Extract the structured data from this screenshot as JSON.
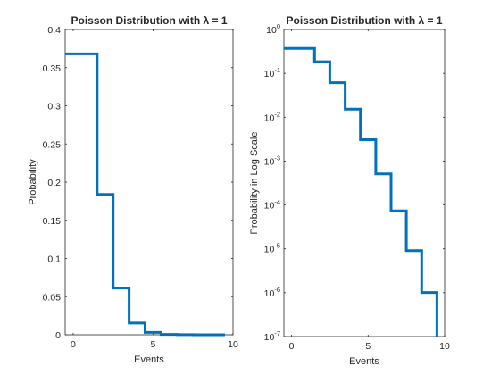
{
  "colors": {
    "series": "#0072BD",
    "axes": "#262626",
    "background": "#ffffff"
  },
  "chart_data": [
    {
      "type": "line",
      "style": "stairs",
      "title": "Poisson Distribution with λ = 1",
      "xlabel": "Events",
      "ylabel": "Probability",
      "yscale": "linear",
      "xlim": [
        -0.5,
        10
      ],
      "ylim": [
        0,
        0.4
      ],
      "xticks": [
        0,
        5,
        10
      ],
      "xtick_labels": [
        "0",
        "5",
        "10"
      ],
      "yticks": [
        0,
        0.05,
        0.1,
        0.15,
        0.2,
        0.25,
        0.3,
        0.35,
        0.4
      ],
      "ytick_labels": [
        "0",
        "0.05",
        "0.1",
        "0.15",
        "0.2",
        "0.25",
        "0.3",
        "0.35",
        "0.4"
      ],
      "grid": false,
      "series": [
        {
          "x": [
            0,
            1,
            2,
            3,
            4,
            5,
            6,
            7,
            8,
            9
          ],
          "values": [
            0.3679,
            0.3679,
            0.1839,
            0.0613,
            0.0153,
            0.00307,
            0.000511,
            7.3e-05,
            9.12e-06,
            1.01e-06
          ]
        }
      ]
    },
    {
      "type": "line",
      "style": "stairs",
      "title": "Poisson Distribution with λ = 1",
      "xlabel": "Events",
      "ylabel": "Probability in Log Scale",
      "yscale": "log",
      "xlim": [
        -0.5,
        10
      ],
      "ylim": [
        1e-07,
        1
      ],
      "xticks": [
        0,
        5,
        10
      ],
      "xtick_labels": [
        "0",
        "5",
        "10"
      ],
      "yticks": [
        1e-07,
        1e-06,
        1e-05,
        0.0001,
        0.001,
        0.01,
        0.1,
        1
      ],
      "ytick_labels": [
        {
          "base": "10",
          "exp": "-7"
        },
        {
          "base": "10",
          "exp": "-6"
        },
        {
          "base": "10",
          "exp": "-5"
        },
        {
          "base": "10",
          "exp": "-4"
        },
        {
          "base": "10",
          "exp": "-3"
        },
        {
          "base": "10",
          "exp": "-2"
        },
        {
          "base": "10",
          "exp": "-1"
        },
        {
          "base": "10",
          "exp": "0"
        }
      ],
      "grid": false,
      "series": [
        {
          "x": [
            0,
            1,
            2,
            3,
            4,
            5,
            6,
            7,
            8,
            9
          ],
          "values": [
            0.3679,
            0.3679,
            0.1839,
            0.0613,
            0.0153,
            0.00307,
            0.000511,
            7.3e-05,
            9.12e-06,
            1.01e-06
          ]
        }
      ]
    }
  ]
}
